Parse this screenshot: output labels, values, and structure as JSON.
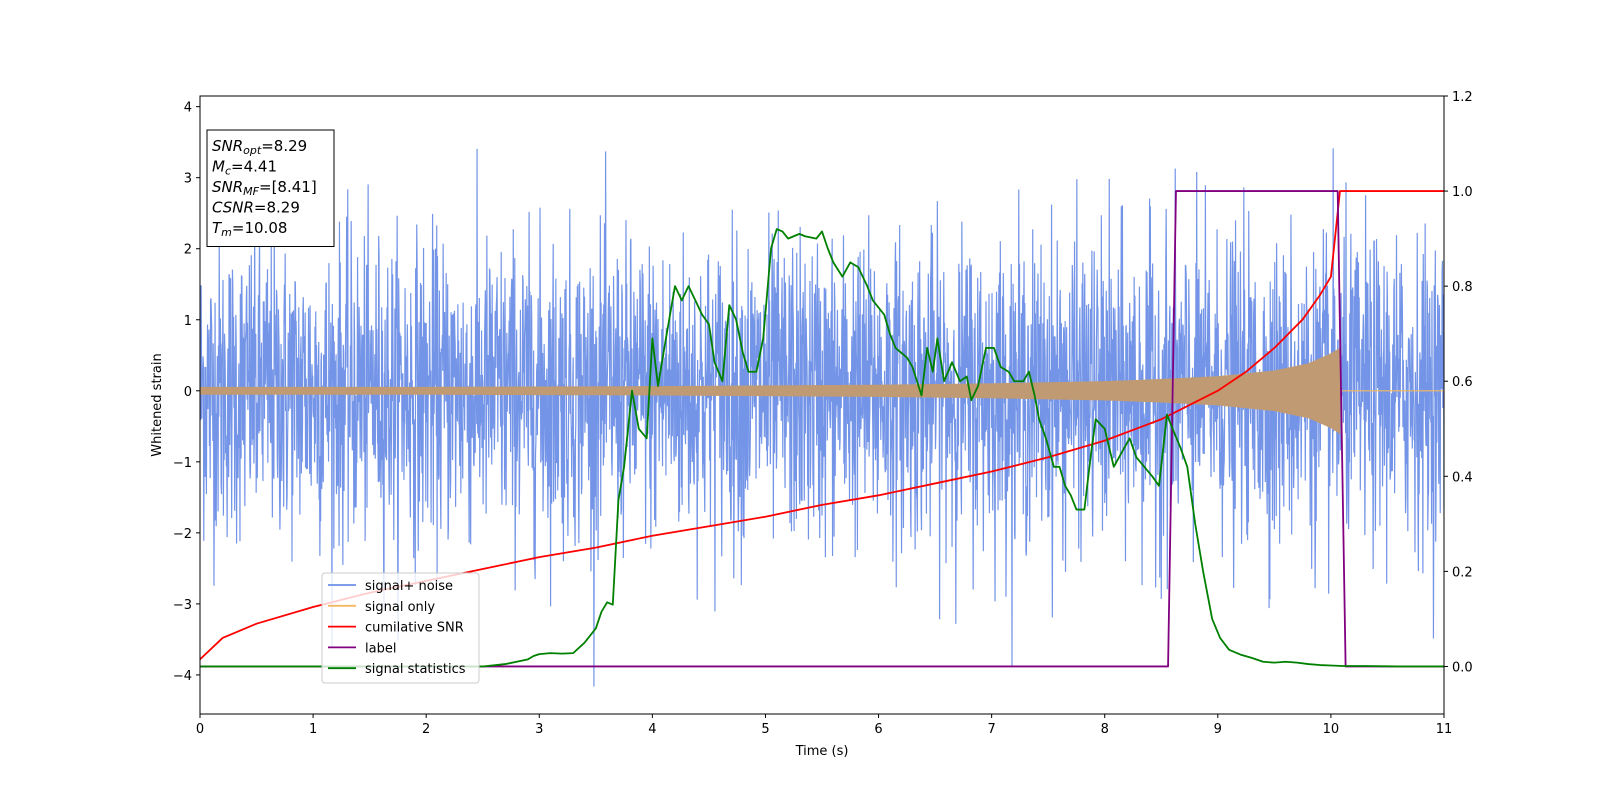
{
  "chart_data": {
    "type": "line",
    "xlabel": "Time (s)",
    "ylabel": "Whitened strain",
    "xlim": [
      0,
      11
    ],
    "ylim": [
      -4.55,
      4.15
    ],
    "y2lim": [
      -0.1,
      1.2
    ],
    "x_ticks": [
      "0",
      "1",
      "2",
      "3",
      "4",
      "5",
      "6",
      "7",
      "8",
      "9",
      "10",
      "11"
    ],
    "y_ticks": [
      {
        "v": 4,
        "label": "4"
      },
      {
        "v": 3,
        "label": "3"
      },
      {
        "v": 2,
        "label": "2"
      },
      {
        "v": 1,
        "label": "1"
      },
      {
        "v": 0,
        "label": "0"
      },
      {
        "v": -1,
        "label": "−1"
      },
      {
        "v": -2,
        "label": "−2"
      },
      {
        "v": -3,
        "label": "−3"
      },
      {
        "v": -4,
        "label": "−4"
      }
    ],
    "y2_ticks": [
      {
        "v": 1.2,
        "label": "1.2"
      },
      {
        "v": 1.0,
        "label": "1.0"
      },
      {
        "v": 0.8,
        "label": "0.8"
      },
      {
        "v": 0.6,
        "label": "0.6"
      },
      {
        "v": 0.4,
        "label": "0.4"
      },
      {
        "v": 0.2,
        "label": "0.2"
      },
      {
        "v": 0.0,
        "label": "0.0"
      }
    ],
    "annotation": {
      "lines": [
        {
          "main": "SNR",
          "sub": "opt",
          "rest": "=8.29"
        },
        {
          "main": "M",
          "sub": "c",
          "rest": "=4.41"
        },
        {
          "main": "SNR",
          "sub": "MF",
          "rest": "=[8.41]"
        },
        {
          "main": "CSNR",
          "sub": "",
          "rest": "=8.29"
        },
        {
          "main": "T",
          "sub": "m",
          "rest": "=10.08"
        }
      ]
    },
    "legend": {
      "placement": "lower-left",
      "entries": [
        {
          "label": "signal+ noise",
          "color": "#6d8fe6"
        },
        {
          "label": "signal only",
          "color": "#f4b860"
        },
        {
          "label": "cumilative SNR",
          "color": "#ff0000"
        },
        {
          "label": "label",
          "color": "#800080"
        },
        {
          "label": "signal statistics",
          "color": "#008000"
        }
      ]
    },
    "series": [
      {
        "name": "signal+ noise",
        "axis": "left",
        "color": "#6d8fe6",
        "noise_sigma": 1.05,
        "extremes": [
          3.75,
          -4.2
        ]
      },
      {
        "name": "signal only",
        "axis": "left",
        "color": "#f4b860",
        "envelope_x": [
          0,
          2,
          4,
          6,
          7,
          8,
          8.5,
          9,
          9.5,
          9.8,
          10.0,
          10.08
        ],
        "envelope_y": [
          0.05,
          0.05,
          0.06,
          0.08,
          0.1,
          0.13,
          0.16,
          0.2,
          0.28,
          0.38,
          0.52,
          0.6
        ],
        "end_time": 10.08
      },
      {
        "name": "cumilative SNR",
        "axis": "right",
        "color": "#ff0000",
        "x": [
          0,
          0.2,
          0.5,
          1,
          1.5,
          2,
          2.5,
          3,
          3.5,
          4,
          4.5,
          5,
          5.5,
          6,
          6.5,
          7,
          7.5,
          8,
          8.5,
          9,
          9.25,
          9.5,
          9.75,
          9.9,
          10.0,
          10.08,
          11
        ],
        "y": [
          0.015,
          0.06,
          0.09,
          0.125,
          0.155,
          0.18,
          0.205,
          0.23,
          0.25,
          0.275,
          0.295,
          0.315,
          0.34,
          0.36,
          0.385,
          0.41,
          0.44,
          0.475,
          0.52,
          0.58,
          0.62,
          0.67,
          0.73,
          0.78,
          0.82,
          1.0,
          1.0
        ]
      },
      {
        "name": "label",
        "axis": "right",
        "color": "#800080",
        "x": [
          0,
          8.56,
          8.63,
          10.06,
          10.13,
          11
        ],
        "y": [
          0,
          0,
          1,
          1,
          0,
          0
        ]
      },
      {
        "name": "signal statistics",
        "axis": "right",
        "color": "#008000",
        "x": [
          0,
          2.0,
          2.5,
          2.7,
          2.8,
          2.9,
          2.95,
          3.0,
          3.1,
          3.2,
          3.3,
          3.4,
          3.5,
          3.55,
          3.6,
          3.65,
          3.7,
          3.75,
          3.82,
          3.88,
          3.95,
          4.0,
          4.05,
          4.12,
          4.2,
          4.26,
          4.32,
          4.38,
          4.44,
          4.5,
          4.55,
          4.62,
          4.68,
          4.74,
          4.8,
          4.85,
          4.92,
          4.98,
          5.05,
          5.1,
          5.15,
          5.2,
          5.3,
          5.35,
          5.45,
          5.5,
          5.55,
          5.6,
          5.68,
          5.75,
          5.82,
          5.9,
          5.95,
          6.05,
          6.1,
          6.15,
          6.2,
          6.25,
          6.3,
          6.38,
          6.43,
          6.48,
          6.52,
          6.58,
          6.65,
          6.72,
          6.78,
          6.82,
          6.88,
          6.95,
          7.02,
          7.08,
          7.15,
          7.2,
          7.28,
          7.33,
          7.38,
          7.42,
          7.48,
          7.55,
          7.6,
          7.65,
          7.7,
          7.75,
          7.82,
          7.88,
          7.92,
          8.0,
          8.08,
          8.15,
          8.22,
          8.28,
          8.35,
          8.42,
          8.48,
          8.55,
          8.6,
          8.67,
          8.73,
          8.8,
          8.87,
          8.95,
          9.02,
          9.1,
          9.2,
          9.3,
          9.4,
          9.5,
          9.6,
          9.7,
          9.8,
          9.9,
          10.0,
          10.1,
          10.3,
          10.6,
          11
        ],
        "y": [
          0.0,
          0.0,
          0.0,
          0.005,
          0.01,
          0.015,
          0.022,
          0.026,
          0.028,
          0.027,
          0.028,
          0.05,
          0.08,
          0.115,
          0.135,
          0.13,
          0.35,
          0.42,
          0.58,
          0.5,
          0.48,
          0.69,
          0.59,
          0.69,
          0.8,
          0.77,
          0.8,
          0.77,
          0.74,
          0.72,
          0.64,
          0.6,
          0.76,
          0.73,
          0.66,
          0.62,
          0.62,
          0.69,
          0.88,
          0.92,
          0.915,
          0.9,
          0.91,
          0.905,
          0.9,
          0.915,
          0.88,
          0.85,
          0.82,
          0.85,
          0.84,
          0.8,
          0.77,
          0.74,
          0.7,
          0.67,
          0.66,
          0.65,
          0.63,
          0.57,
          0.67,
          0.62,
          0.69,
          0.6,
          0.64,
          0.6,
          0.61,
          0.56,
          0.59,
          0.67,
          0.67,
          0.63,
          0.62,
          0.6,
          0.6,
          0.62,
          0.57,
          0.52,
          0.48,
          0.42,
          0.42,
          0.38,
          0.36,
          0.33,
          0.33,
          0.45,
          0.52,
          0.5,
          0.42,
          0.45,
          0.48,
          0.44,
          0.42,
          0.4,
          0.38,
          0.53,
          0.5,
          0.46,
          0.42,
          0.3,
          0.2,
          0.1,
          0.06,
          0.035,
          0.025,
          0.018,
          0.01,
          0.008,
          0.01,
          0.008,
          0.005,
          0.003,
          0.002,
          0.001,
          0.001,
          0.0,
          0.0
        ]
      }
    ]
  }
}
